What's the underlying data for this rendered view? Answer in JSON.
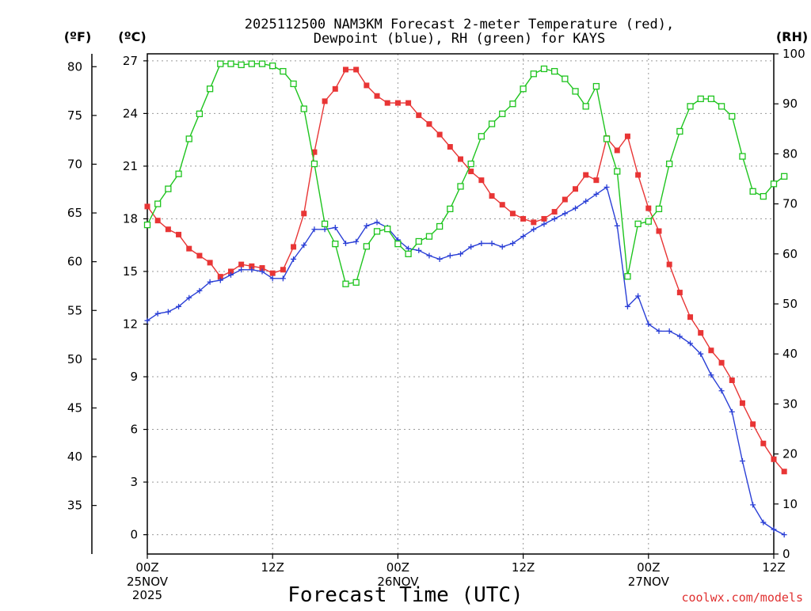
{
  "chart_data": {
    "type": "line",
    "title_line1": "2025112500 NAM3KM Forecast 2-meter Temperature (red),",
    "title_line2": "Dewpoint (blue), RH (green) for KAYS",
    "xlabel": "Forecast Time (UTC)",
    "credit": "coolwx.com/models",
    "units": {
      "fahrenheit": "(ºF)",
      "celsius": "(ºC)",
      "rh": "(RH)"
    },
    "x_hours_range": [
      0,
      60
    ],
    "x_ticks": [
      {
        "hour": 0,
        "label": "00Z",
        "sub1": "25NOV",
        "sub2": "2025"
      },
      {
        "hour": 12,
        "label": "12Z",
        "sub1": "",
        "sub2": ""
      },
      {
        "hour": 24,
        "label": "00Z",
        "sub1": "26NOV",
        "sub2": ""
      },
      {
        "hour": 36,
        "label": "12Z",
        "sub1": "",
        "sub2": ""
      },
      {
        "hour": 48,
        "label": "00Z",
        "sub1": "27NOV",
        "sub2": ""
      },
      {
        "hour": 60,
        "label": "12Z",
        "sub1": "",
        "sub2": ""
      }
    ],
    "celsius_axis": {
      "range": [
        -1.1,
        27.4
      ],
      "ticks": [
        "0",
        "3",
        "6",
        "9",
        "12",
        "15",
        "18",
        "21",
        "24",
        "27"
      ]
    },
    "fahrenheit_axis": {
      "ticks": [
        "35",
        "40",
        "45",
        "50",
        "55",
        "60",
        "65",
        "70",
        "75",
        "80"
      ]
    },
    "rh_axis": {
      "range": [
        0,
        100
      ],
      "ticks": [
        "0",
        "10",
        "20",
        "30",
        "40",
        "50",
        "60",
        "70",
        "80",
        "90",
        "100"
      ]
    },
    "series": [
      {
        "name": "2-meter Temperature",
        "unit": "C",
        "color": "#e83535",
        "marker": "filled-square",
        "values": [
          18.7,
          17.9,
          17.4,
          17.1,
          16.3,
          15.9,
          15.5,
          14.7,
          15.0,
          15.4,
          15.3,
          15.2,
          14.9,
          15.1,
          16.4,
          18.3,
          21.8,
          24.7,
          25.4,
          26.5,
          26.5,
          25.6,
          25.0,
          24.6,
          24.6,
          24.6,
          23.9,
          23.4,
          22.8,
          22.1,
          21.4,
          20.7,
          20.2,
          19.3,
          18.8,
          18.3,
          18.0,
          17.8,
          18.0,
          18.4,
          19.1,
          19.7,
          20.5,
          20.2,
          22.6,
          21.9,
          22.7,
          20.5,
          18.6,
          17.3,
          15.4,
          13.8,
          12.4,
          11.5,
          10.5,
          9.8,
          8.8,
          7.5,
          6.3,
          5.2,
          4.3,
          3.6
        ]
      },
      {
        "name": "Dewpoint",
        "unit": "C",
        "color": "#2a3fd6",
        "marker": "plus",
        "values": [
          12.2,
          12.6,
          12.7,
          13.0,
          13.5,
          13.9,
          14.4,
          14.5,
          14.8,
          15.1,
          15.1,
          15.0,
          14.6,
          14.6,
          15.7,
          16.5,
          17.4,
          17.4,
          17.5,
          16.6,
          16.7,
          17.6,
          17.8,
          17.5,
          16.8,
          16.3,
          16.2,
          15.9,
          15.7,
          15.9,
          16.0,
          16.4,
          16.6,
          16.6,
          16.4,
          16.6,
          17.0,
          17.4,
          17.7,
          18.0,
          18.3,
          18.6,
          19.0,
          19.4,
          19.8,
          17.6,
          13.0,
          13.6,
          12.0,
          11.6,
          11.6,
          11.3,
          10.9,
          10.3,
          9.1,
          8.2,
          7.0,
          4.2,
          1.7,
          0.7,
          0.3,
          0.0
        ]
      },
      {
        "name": "RH",
        "unit": "%",
        "color": "#1ec41e",
        "marker": "open-square",
        "values": [
          65.8,
          70.0,
          73.0,
          76.0,
          83.0,
          88.0,
          93.0,
          98.0,
          98.0,
          97.8,
          98.0,
          98.0,
          97.6,
          96.5,
          94.0,
          89.0,
          78.0,
          66.0,
          62.0,
          54.0,
          54.3,
          61.5,
          64.5,
          65.0,
          62.0,
          60.0,
          62.5,
          63.5,
          65.5,
          69.0,
          73.5,
          78.0,
          83.5,
          86.0,
          88.0,
          90.0,
          93.0,
          96.0,
          97.0,
          96.5,
          95.0,
          92.5,
          89.5,
          93.5,
          83.0,
          76.5,
          55.5,
          66.0,
          66.5,
          69.0,
          78.0,
          84.5,
          89.5,
          91.0,
          91.0,
          89.5,
          87.5,
          79.5,
          72.5,
          71.5,
          74.0,
          75.5
        ]
      }
    ]
  }
}
